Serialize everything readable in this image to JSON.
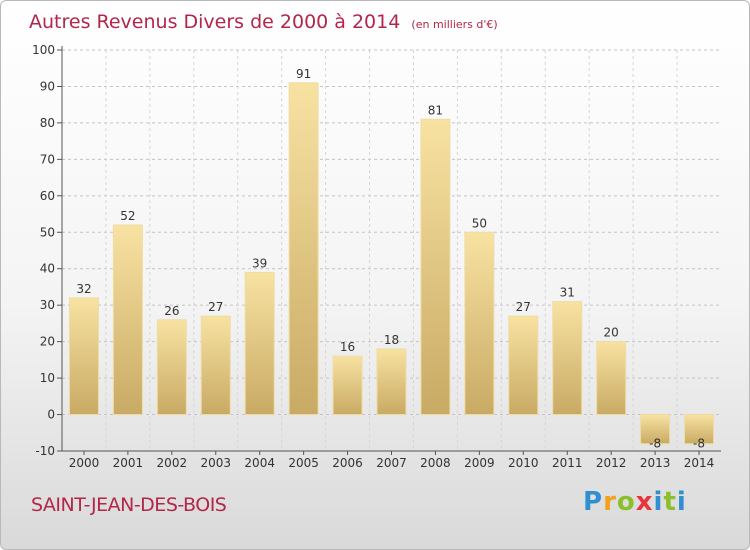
{
  "header": {
    "title": "Autres Revenus Divers de 2000 à 2014",
    "unit": "(en milliers d'€)"
  },
  "footer": {
    "town": "SAINT-JEAN-DES-BOIS",
    "logo": "Proxiti"
  },
  "colors": {
    "title": "#b3264a",
    "bar_light": "#f8e2a2",
    "bar_dark": "#c8aa64",
    "axis": "#555555"
  },
  "chart_data": {
    "type": "bar",
    "title": "Autres Revenus Divers de 2000 à 2014",
    "subtitle": "(en milliers d'€)",
    "categories": [
      "2000",
      "2001",
      "2002",
      "2003",
      "2004",
      "2005",
      "2006",
      "2007",
      "2008",
      "2009",
      "2010",
      "2011",
      "2012",
      "2013",
      "2014"
    ],
    "values": [
      32,
      52,
      26,
      27,
      39,
      91,
      16,
      18,
      81,
      50,
      27,
      31,
      20,
      -8,
      -8
    ],
    "data_labels": [
      "32",
      "52",
      "26",
      "27",
      "39",
      "91",
      "16",
      "18",
      "81",
      "50",
      "27",
      "31",
      "20",
      "-8",
      "-8"
    ],
    "y_ticks": [
      -10,
      0,
      10,
      20,
      30,
      40,
      50,
      60,
      70,
      80,
      90,
      100
    ],
    "ylim": [
      -10,
      100
    ],
    "grid": "horizontal dashed",
    "legend": "none"
  }
}
